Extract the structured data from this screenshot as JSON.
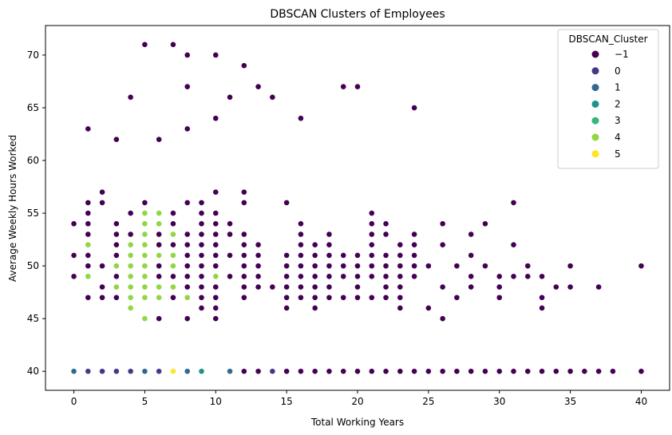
{
  "chart_data": {
    "type": "scatter",
    "title": "DBSCAN Clusters of Employees",
    "xlabel": "Total Working Years",
    "ylabel": "Average Weekly Hours Worked",
    "xlim": [
      -2,
      42
    ],
    "ylim": [
      38.2,
      72.8
    ],
    "xticks": [
      0,
      5,
      10,
      15,
      20,
      25,
      30,
      35,
      40
    ],
    "yticks": [
      40,
      45,
      50,
      55,
      60,
      65,
      70
    ],
    "grid": false,
    "legend": {
      "title": "DBSCAN_Cluster",
      "position": "top-right"
    },
    "series": [
      {
        "name": "−1",
        "color": "#440154",
        "points": [
          [
            0,
            49
          ],
          [
            0,
            51
          ],
          [
            0,
            54
          ],
          [
            1,
            47
          ],
          [
            1,
            50
          ],
          [
            1,
            51
          ],
          [
            1,
            53
          ],
          [
            1,
            54
          ],
          [
            1,
            55
          ],
          [
            1,
            56
          ],
          [
            1,
            63
          ],
          [
            2,
            47
          ],
          [
            2,
            48
          ],
          [
            2,
            50
          ],
          [
            2,
            56
          ],
          [
            2,
            57
          ],
          [
            3,
            47
          ],
          [
            3,
            49
          ],
          [
            3,
            51
          ],
          [
            3,
            52
          ],
          [
            3,
            53
          ],
          [
            3,
            54
          ],
          [
            3,
            62
          ],
          [
            4,
            47
          ],
          [
            4,
            48
          ],
          [
            4,
            49
          ],
          [
            4,
            50
          ],
          [
            4,
            51
          ],
          [
            4,
            53
          ],
          [
            4,
            55
          ],
          [
            4,
            66
          ],
          [
            5,
            56
          ],
          [
            5,
            71
          ],
          [
            6,
            45
          ],
          [
            6,
            47
          ],
          [
            6,
            49
          ],
          [
            6,
            50
          ],
          [
            6,
            52
          ],
          [
            6,
            53
          ],
          [
            6,
            62
          ],
          [
            7,
            47
          ],
          [
            7,
            49
          ],
          [
            7,
            52
          ],
          [
            7,
            54
          ],
          [
            7,
            55
          ],
          [
            7,
            71
          ],
          [
            8,
            45
          ],
          [
            8,
            48
          ],
          [
            8,
            49
          ],
          [
            8,
            50
          ],
          [
            8,
            51
          ],
          [
            8,
            52
          ],
          [
            8,
            53
          ],
          [
            8,
            56
          ],
          [
            8,
            63
          ],
          [
            8,
            67
          ],
          [
            8,
            70
          ],
          [
            9,
            46
          ],
          [
            9,
            47
          ],
          [
            9,
            48
          ],
          [
            9,
            49
          ],
          [
            9,
            50
          ],
          [
            9,
            51
          ],
          [
            9,
            52
          ],
          [
            9,
            53
          ],
          [
            9,
            54
          ],
          [
            9,
            55
          ],
          [
            9,
            56
          ],
          [
            10,
            45
          ],
          [
            10,
            46
          ],
          [
            10,
            47
          ],
          [
            10,
            48
          ],
          [
            10,
            50
          ],
          [
            10,
            51
          ],
          [
            10,
            52
          ],
          [
            10,
            53
          ],
          [
            10,
            54
          ],
          [
            10,
            55
          ],
          [
            10,
            57
          ],
          [
            10,
            64
          ],
          [
            10,
            70
          ],
          [
            11,
            49
          ],
          [
            11,
            51
          ],
          [
            11,
            53
          ],
          [
            11,
            54
          ],
          [
            11,
            66
          ],
          [
            12,
            47
          ],
          [
            12,
            48
          ],
          [
            12,
            49
          ],
          [
            12,
            50
          ],
          [
            12,
            51
          ],
          [
            12,
            52
          ],
          [
            12,
            53
          ],
          [
            12,
            56
          ],
          [
            12,
            57
          ],
          [
            12,
            69
          ],
          [
            13,
            48
          ],
          [
            13,
            49
          ],
          [
            13,
            50
          ],
          [
            13,
            51
          ],
          [
            13,
            52
          ],
          [
            13,
            67
          ],
          [
            14,
            48
          ],
          [
            14,
            66
          ],
          [
            15,
            46
          ],
          [
            15,
            47
          ],
          [
            15,
            48
          ],
          [
            15,
            49
          ],
          [
            15,
            50
          ],
          [
            15,
            51
          ],
          [
            15,
            56
          ],
          [
            16,
            47
          ],
          [
            16,
            48
          ],
          [
            16,
            49
          ],
          [
            16,
            50
          ],
          [
            16,
            51
          ],
          [
            16,
            52
          ],
          [
            16,
            53
          ],
          [
            16,
            54
          ],
          [
            16,
            64
          ],
          [
            17,
            46
          ],
          [
            17,
            47
          ],
          [
            17,
            48
          ],
          [
            17,
            49
          ],
          [
            17,
            50
          ],
          [
            17,
            51
          ],
          [
            17,
            52
          ],
          [
            18,
            47
          ],
          [
            18,
            48
          ],
          [
            18,
            49
          ],
          [
            18,
            50
          ],
          [
            18,
            51
          ],
          [
            18,
            52
          ],
          [
            18,
            53
          ],
          [
            19,
            47
          ],
          [
            19,
            49
          ],
          [
            19,
            50
          ],
          [
            19,
            51
          ],
          [
            19,
            67
          ],
          [
            20,
            47
          ],
          [
            20,
            48
          ],
          [
            20,
            49
          ],
          [
            20,
            50
          ],
          [
            20,
            51
          ],
          [
            20,
            67
          ],
          [
            21,
            47
          ],
          [
            21,
            49
          ],
          [
            21,
            50
          ],
          [
            21,
            51
          ],
          [
            21,
            52
          ],
          [
            21,
            53
          ],
          [
            21,
            54
          ],
          [
            21,
            55
          ],
          [
            22,
            47
          ],
          [
            22,
            48
          ],
          [
            22,
            49
          ],
          [
            22,
            50
          ],
          [
            22,
            51
          ],
          [
            22,
            53
          ],
          [
            22,
            54
          ],
          [
            23,
            46
          ],
          [
            23,
            47
          ],
          [
            23,
            48
          ],
          [
            23,
            49
          ],
          [
            23,
            50
          ],
          [
            23,
            51
          ],
          [
            23,
            52
          ],
          [
            24,
            49
          ],
          [
            24,
            50
          ],
          [
            24,
            51
          ],
          [
            24,
            52
          ],
          [
            24,
            53
          ],
          [
            24,
            65
          ],
          [
            25,
            46
          ],
          [
            25,
            50
          ],
          [
            26,
            45
          ],
          [
            26,
            48
          ],
          [
            26,
            52
          ],
          [
            26,
            54
          ],
          [
            27,
            47
          ],
          [
            27,
            50
          ],
          [
            28,
            48
          ],
          [
            28,
            49
          ],
          [
            28,
            51
          ],
          [
            28,
            53
          ],
          [
            29,
            50
          ],
          [
            29,
            54
          ],
          [
            30,
            47
          ],
          [
            30,
            48
          ],
          [
            30,
            49
          ],
          [
            31,
            49
          ],
          [
            31,
            52
          ],
          [
            31,
            56
          ],
          [
            32,
            49
          ],
          [
            32,
            50
          ],
          [
            33,
            46
          ],
          [
            33,
            47
          ],
          [
            33,
            49
          ],
          [
            34,
            48
          ],
          [
            35,
            48
          ],
          [
            35,
            50
          ],
          [
            37,
            48
          ],
          [
            40,
            50
          ],
          [
            12,
            40
          ],
          [
            13,
            40
          ],
          [
            15,
            40
          ],
          [
            16,
            40
          ],
          [
            17,
            40
          ],
          [
            18,
            40
          ],
          [
            19,
            40
          ],
          [
            20,
            40
          ],
          [
            21,
            40
          ],
          [
            22,
            40
          ],
          [
            23,
            40
          ],
          [
            24,
            40
          ],
          [
            25,
            40
          ],
          [
            26,
            40
          ],
          [
            27,
            40
          ],
          [
            28,
            40
          ],
          [
            29,
            40
          ],
          [
            30,
            40
          ],
          [
            31,
            40
          ],
          [
            32,
            40
          ],
          [
            33,
            40
          ],
          [
            34,
            40
          ],
          [
            35,
            40
          ],
          [
            36,
            40
          ],
          [
            37,
            40
          ],
          [
            38,
            40
          ],
          [
            40,
            40
          ]
        ]
      },
      {
        "name": "0",
        "color": "#443983",
        "points": [
          [
            1,
            40
          ],
          [
            2,
            40
          ],
          [
            3,
            40
          ],
          [
            4,
            40
          ],
          [
            6,
            40
          ],
          [
            14,
            40
          ]
        ]
      },
      {
        "name": "1",
        "color": "#31688e",
        "points": [
          [
            0,
            40
          ],
          [
            5,
            40
          ],
          [
            8,
            40
          ],
          [
            11,
            40
          ]
        ]
      },
      {
        "name": "2",
        "color": "#21918c",
        "points": [
          [
            9,
            40
          ]
        ]
      },
      {
        "name": "3",
        "color": "#35b779",
        "points": []
      },
      {
        "name": "4",
        "color": "#90d743",
        "points": [
          [
            1,
            49
          ],
          [
            1,
            52
          ],
          [
            3,
            48
          ],
          [
            3,
            50
          ],
          [
            4,
            46
          ],
          [
            4,
            47
          ],
          [
            4,
            48
          ],
          [
            4,
            49
          ],
          [
            4,
            50
          ],
          [
            4,
            51
          ],
          [
            4,
            52
          ],
          [
            5,
            45
          ],
          [
            5,
            47
          ],
          [
            5,
            48
          ],
          [
            5,
            49
          ],
          [
            5,
            50
          ],
          [
            5,
            51
          ],
          [
            5,
            52
          ],
          [
            5,
            53
          ],
          [
            5,
            54
          ],
          [
            5,
            55
          ],
          [
            6,
            47
          ],
          [
            6,
            48
          ],
          [
            6,
            51
          ],
          [
            6,
            54
          ],
          [
            6,
            55
          ],
          [
            7,
            48
          ],
          [
            7,
            50
          ],
          [
            7,
            51
          ],
          [
            7,
            53
          ],
          [
            8,
            47
          ],
          [
            10,
            49
          ]
        ]
      },
      {
        "name": "5",
        "color": "#fde725",
        "points": [
          [
            7,
            40
          ]
        ]
      }
    ]
  }
}
